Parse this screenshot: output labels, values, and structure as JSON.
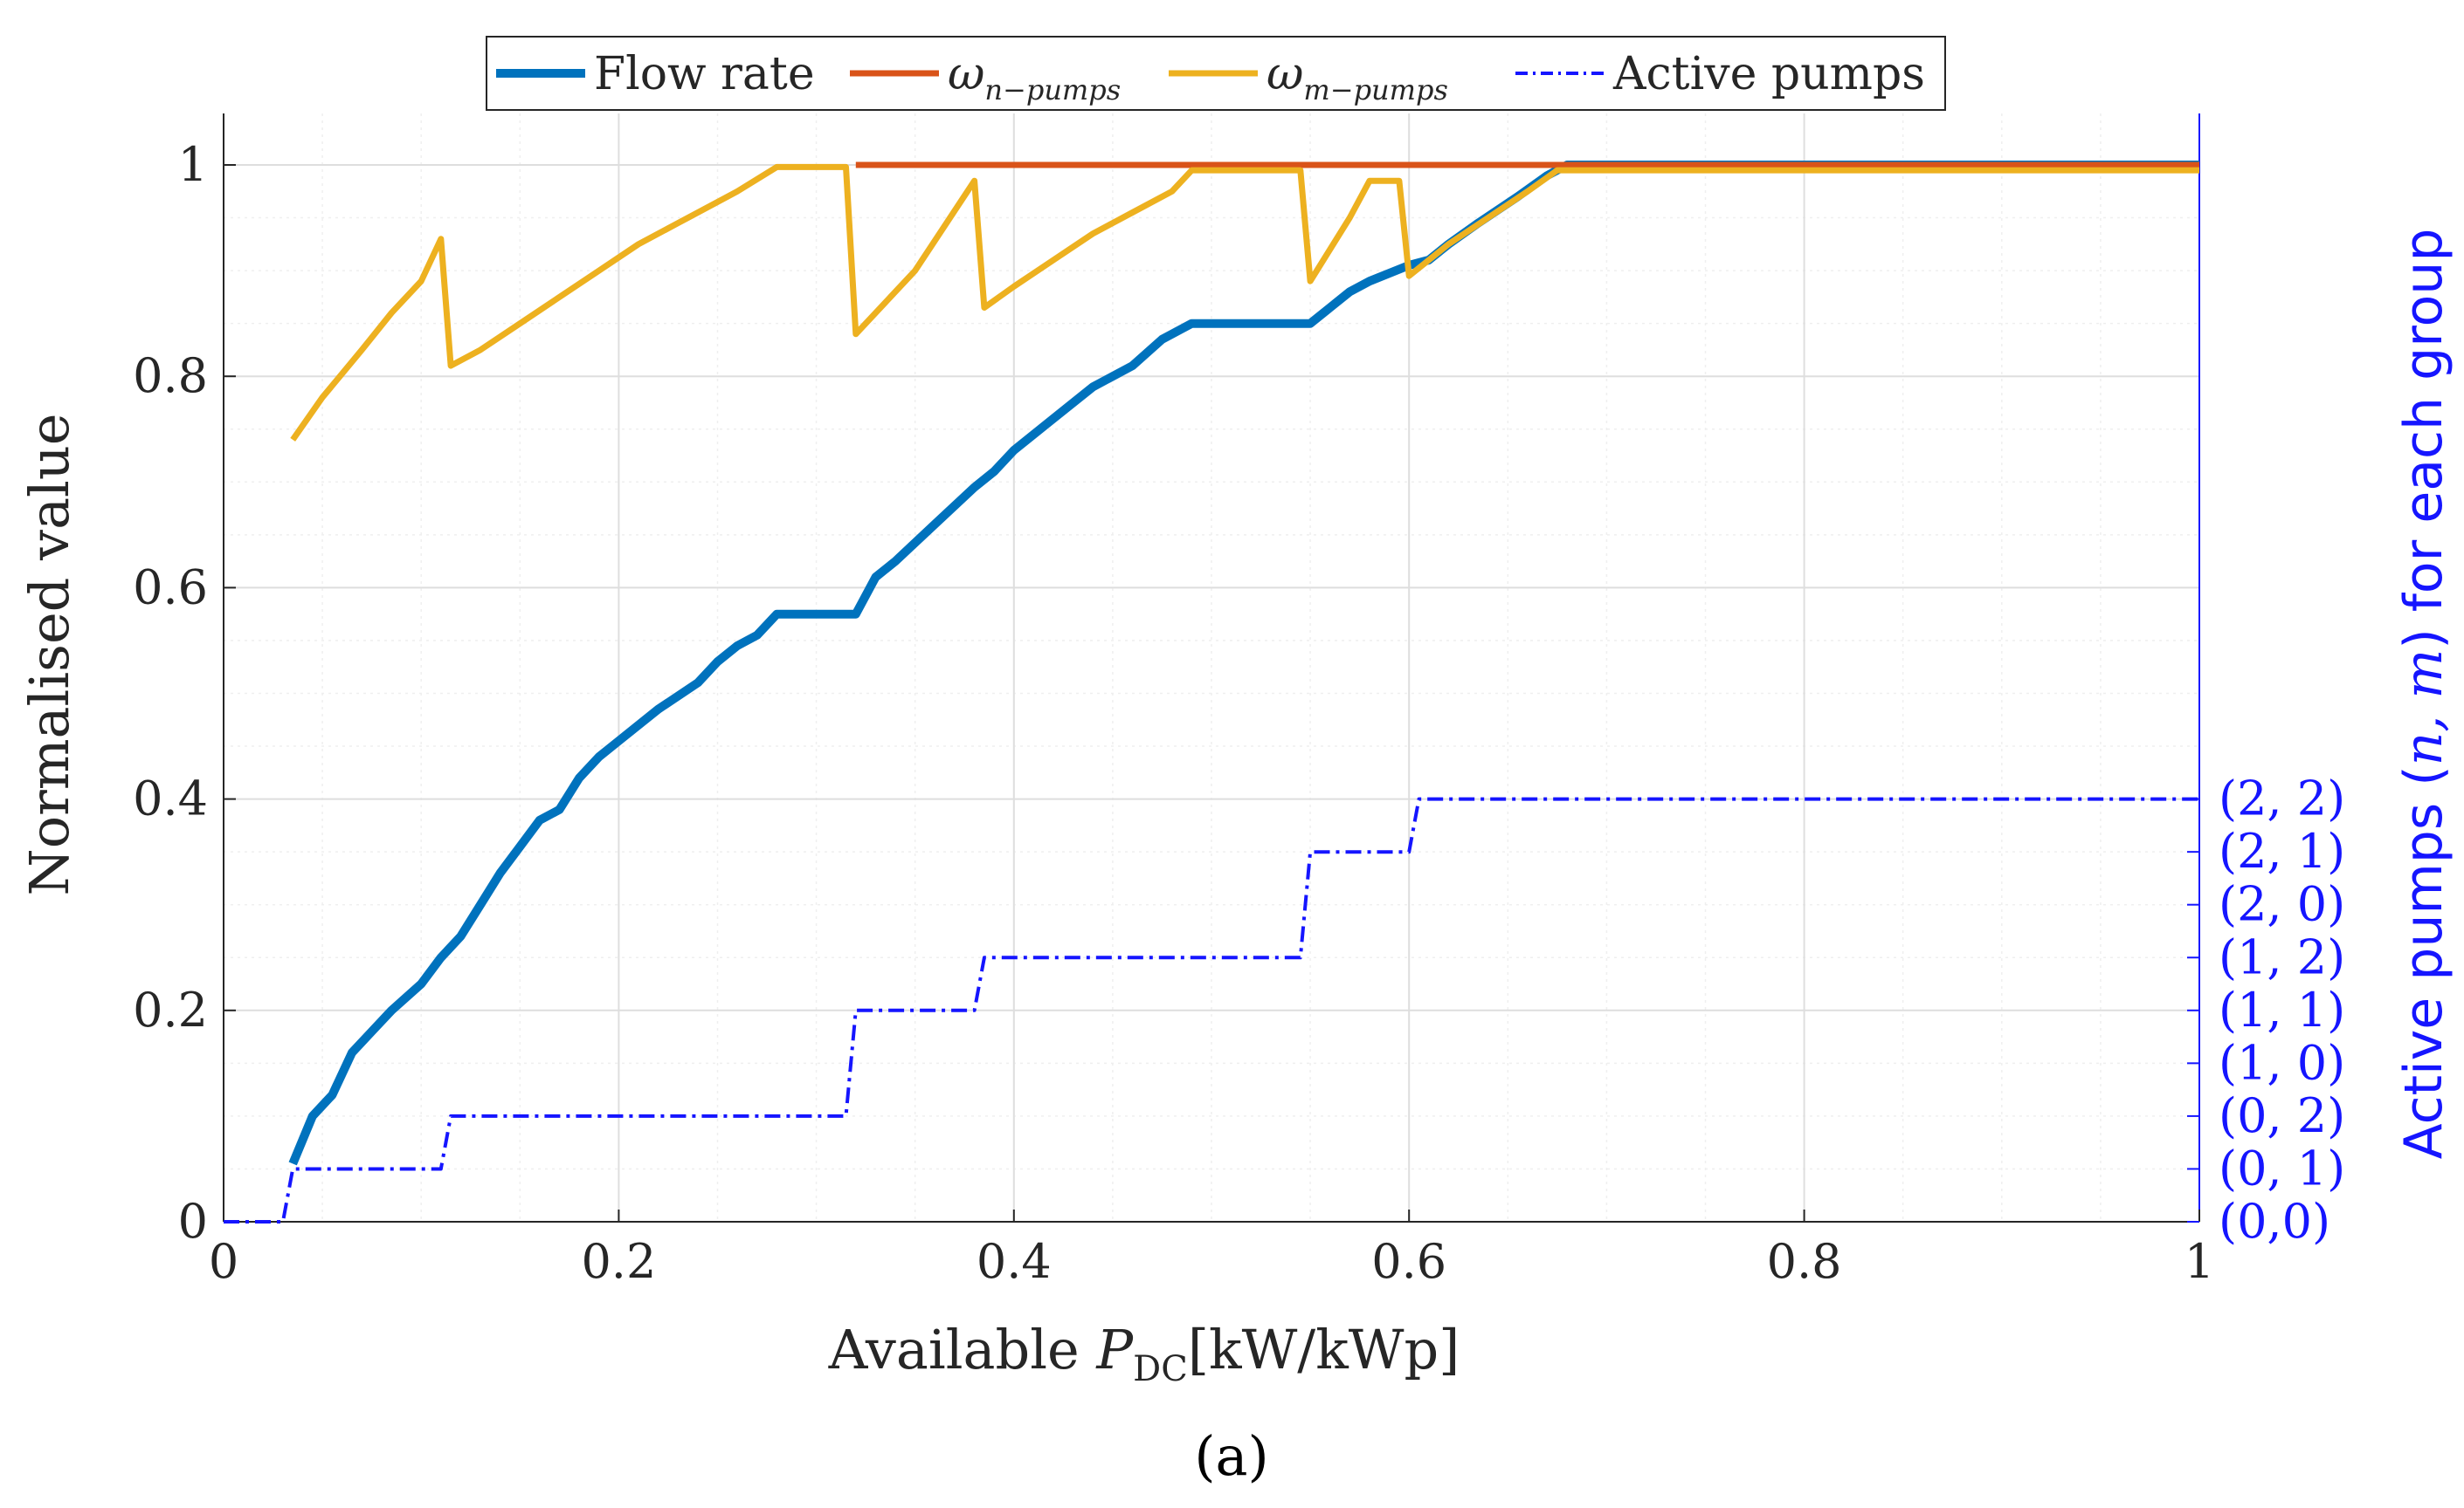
{
  "chart_data": {
    "type": "line",
    "caption": "(a)",
    "xlabel_text": "Available ",
    "xlabel_sym": "P",
    "xlabel_sub": "DC",
    "xlabel_unit": "[kW/kWp]",
    "ylabel": "Normalised value",
    "ylabel_right_pre": "Active pumps (",
    "ylabel_right_sym": "n, m",
    "ylabel_right_post": ") for each group",
    "xlim": [
      0,
      1
    ],
    "ylim": [
      0,
      1.05
    ],
    "grid": true,
    "legend_position": "top-center",
    "x_ticks": [
      0,
      0.2,
      0.4,
      0.6,
      0.8,
      1
    ],
    "x_tick_labels": [
      "0",
      "0.2",
      "0.4",
      "0.6",
      "0.8",
      "1"
    ],
    "y_ticks": [
      0,
      0.2,
      0.4,
      0.6,
      0.8,
      1
    ],
    "y_tick_labels": [
      "0",
      "0.2",
      "0.4",
      "0.6",
      "0.8",
      "1"
    ],
    "right_ticks": [
      0,
      0.05,
      0.1,
      0.15,
      0.2,
      0.25,
      0.3,
      0.35,
      0.4
    ],
    "right_tick_labels": [
      "(0,0)",
      "(0, 1)",
      "(0, 2)",
      "(1, 0)",
      "(1, 1)",
      "(1, 2)",
      "(2, 0)",
      "(2, 1)",
      "(2, 2)"
    ],
    "series": [
      {
        "name": "Flow rate",
        "legend_text": "Flow rate",
        "color": "#0072BD",
        "style": "solid",
        "width": 10,
        "points": [
          [
            0.035,
            0.055
          ],
          [
            0.045,
            0.1
          ],
          [
            0.055,
            0.12
          ],
          [
            0.065,
            0.16
          ],
          [
            0.075,
            0.18
          ],
          [
            0.085,
            0.2
          ],
          [
            0.1,
            0.225
          ],
          [
            0.11,
            0.25
          ],
          [
            0.12,
            0.27
          ],
          [
            0.13,
            0.3
          ],
          [
            0.14,
            0.33
          ],
          [
            0.15,
            0.355
          ],
          [
            0.16,
            0.38
          ],
          [
            0.17,
            0.39
          ],
          [
            0.18,
            0.42
          ],
          [
            0.19,
            0.44
          ],
          [
            0.2,
            0.455
          ],
          [
            0.22,
            0.485
          ],
          [
            0.24,
            0.51
          ],
          [
            0.25,
            0.53
          ],
          [
            0.26,
            0.545
          ],
          [
            0.27,
            0.555
          ],
          [
            0.28,
            0.575
          ],
          [
            0.32,
            0.575
          ],
          [
            0.33,
            0.61
          ],
          [
            0.34,
            0.625
          ],
          [
            0.36,
            0.66
          ],
          [
            0.38,
            0.695
          ],
          [
            0.39,
            0.71
          ],
          [
            0.4,
            0.73
          ],
          [
            0.42,
            0.76
          ],
          [
            0.44,
            0.79
          ],
          [
            0.46,
            0.81
          ],
          [
            0.475,
            0.835
          ],
          [
            0.49,
            0.85
          ],
          [
            0.55,
            0.85
          ],
          [
            0.57,
            0.88
          ],
          [
            0.58,
            0.89
          ],
          [
            0.6,
            0.905
          ],
          [
            0.61,
            0.91
          ],
          [
            0.62,
            0.925
          ],
          [
            0.635,
            0.945
          ],
          [
            0.655,
            0.97
          ],
          [
            0.67,
            0.99
          ],
          [
            0.68,
            1.0
          ],
          [
            1.0,
            1.0
          ]
        ]
      },
      {
        "name": "omega-n-pumps",
        "legend_symbol": "ω",
        "legend_sub": "n−pumps",
        "color": "#D95319",
        "style": "solid",
        "width": 7,
        "points": [
          [
            0.32,
            1.0
          ],
          [
            1.0,
            1.0
          ]
        ]
      },
      {
        "name": "omega-m-pumps",
        "legend_symbol": "ω",
        "legend_sub": "m−pumps",
        "color": "#EDB120",
        "style": "solid",
        "width": 7,
        "points": [
          [
            0.035,
            0.74
          ],
          [
            0.05,
            0.78
          ],
          [
            0.07,
            0.825
          ],
          [
            0.085,
            0.86
          ],
          [
            0.1,
            0.89
          ],
          [
            0.11,
            0.93
          ],
          [
            0.115,
            0.81
          ],
          [
            0.13,
            0.825
          ],
          [
            0.15,
            0.85
          ],
          [
            0.17,
            0.875
          ],
          [
            0.19,
            0.9
          ],
          [
            0.21,
            0.925
          ],
          [
            0.23,
            0.945
          ],
          [
            0.25,
            0.965
          ],
          [
            0.26,
            0.975
          ],
          [
            0.28,
            0.998
          ],
          [
            0.315,
            0.998
          ],
          [
            0.32,
            0.84
          ],
          [
            0.33,
            0.86
          ],
          [
            0.35,
            0.9
          ],
          [
            0.38,
            0.985
          ],
          [
            0.385,
            0.865
          ],
          [
            0.4,
            0.885
          ],
          [
            0.42,
            0.91
          ],
          [
            0.44,
            0.935
          ],
          [
            0.46,
            0.955
          ],
          [
            0.48,
            0.975
          ],
          [
            0.49,
            0.995
          ],
          [
            0.545,
            0.995
          ],
          [
            0.55,
            0.89
          ],
          [
            0.57,
            0.95
          ],
          [
            0.58,
            0.985
          ],
          [
            0.595,
            0.985
          ],
          [
            0.6,
            0.895
          ],
          [
            0.62,
            0.925
          ],
          [
            0.64,
            0.95
          ],
          [
            0.66,
            0.975
          ],
          [
            0.675,
            0.995
          ],
          [
            1.0,
            0.995
          ]
        ]
      },
      {
        "name": "Active pumps",
        "legend_text": "Active pumps",
        "color": "#1515FF",
        "style": "dashdot",
        "width": 4,
        "points": [
          [
            0,
            0
          ],
          [
            0.03,
            0
          ],
          [
            0.035,
            0.05
          ],
          [
            0.11,
            0.05
          ],
          [
            0.115,
            0.1
          ],
          [
            0.315,
            0.1
          ],
          [
            0.32,
            0.2
          ],
          [
            0.38,
            0.2
          ],
          [
            0.385,
            0.25
          ],
          [
            0.545,
            0.25
          ],
          [
            0.55,
            0.35
          ],
          [
            0.6,
            0.35
          ],
          [
            0.605,
            0.4
          ],
          [
            1.0,
            0.4
          ]
        ]
      }
    ]
  }
}
